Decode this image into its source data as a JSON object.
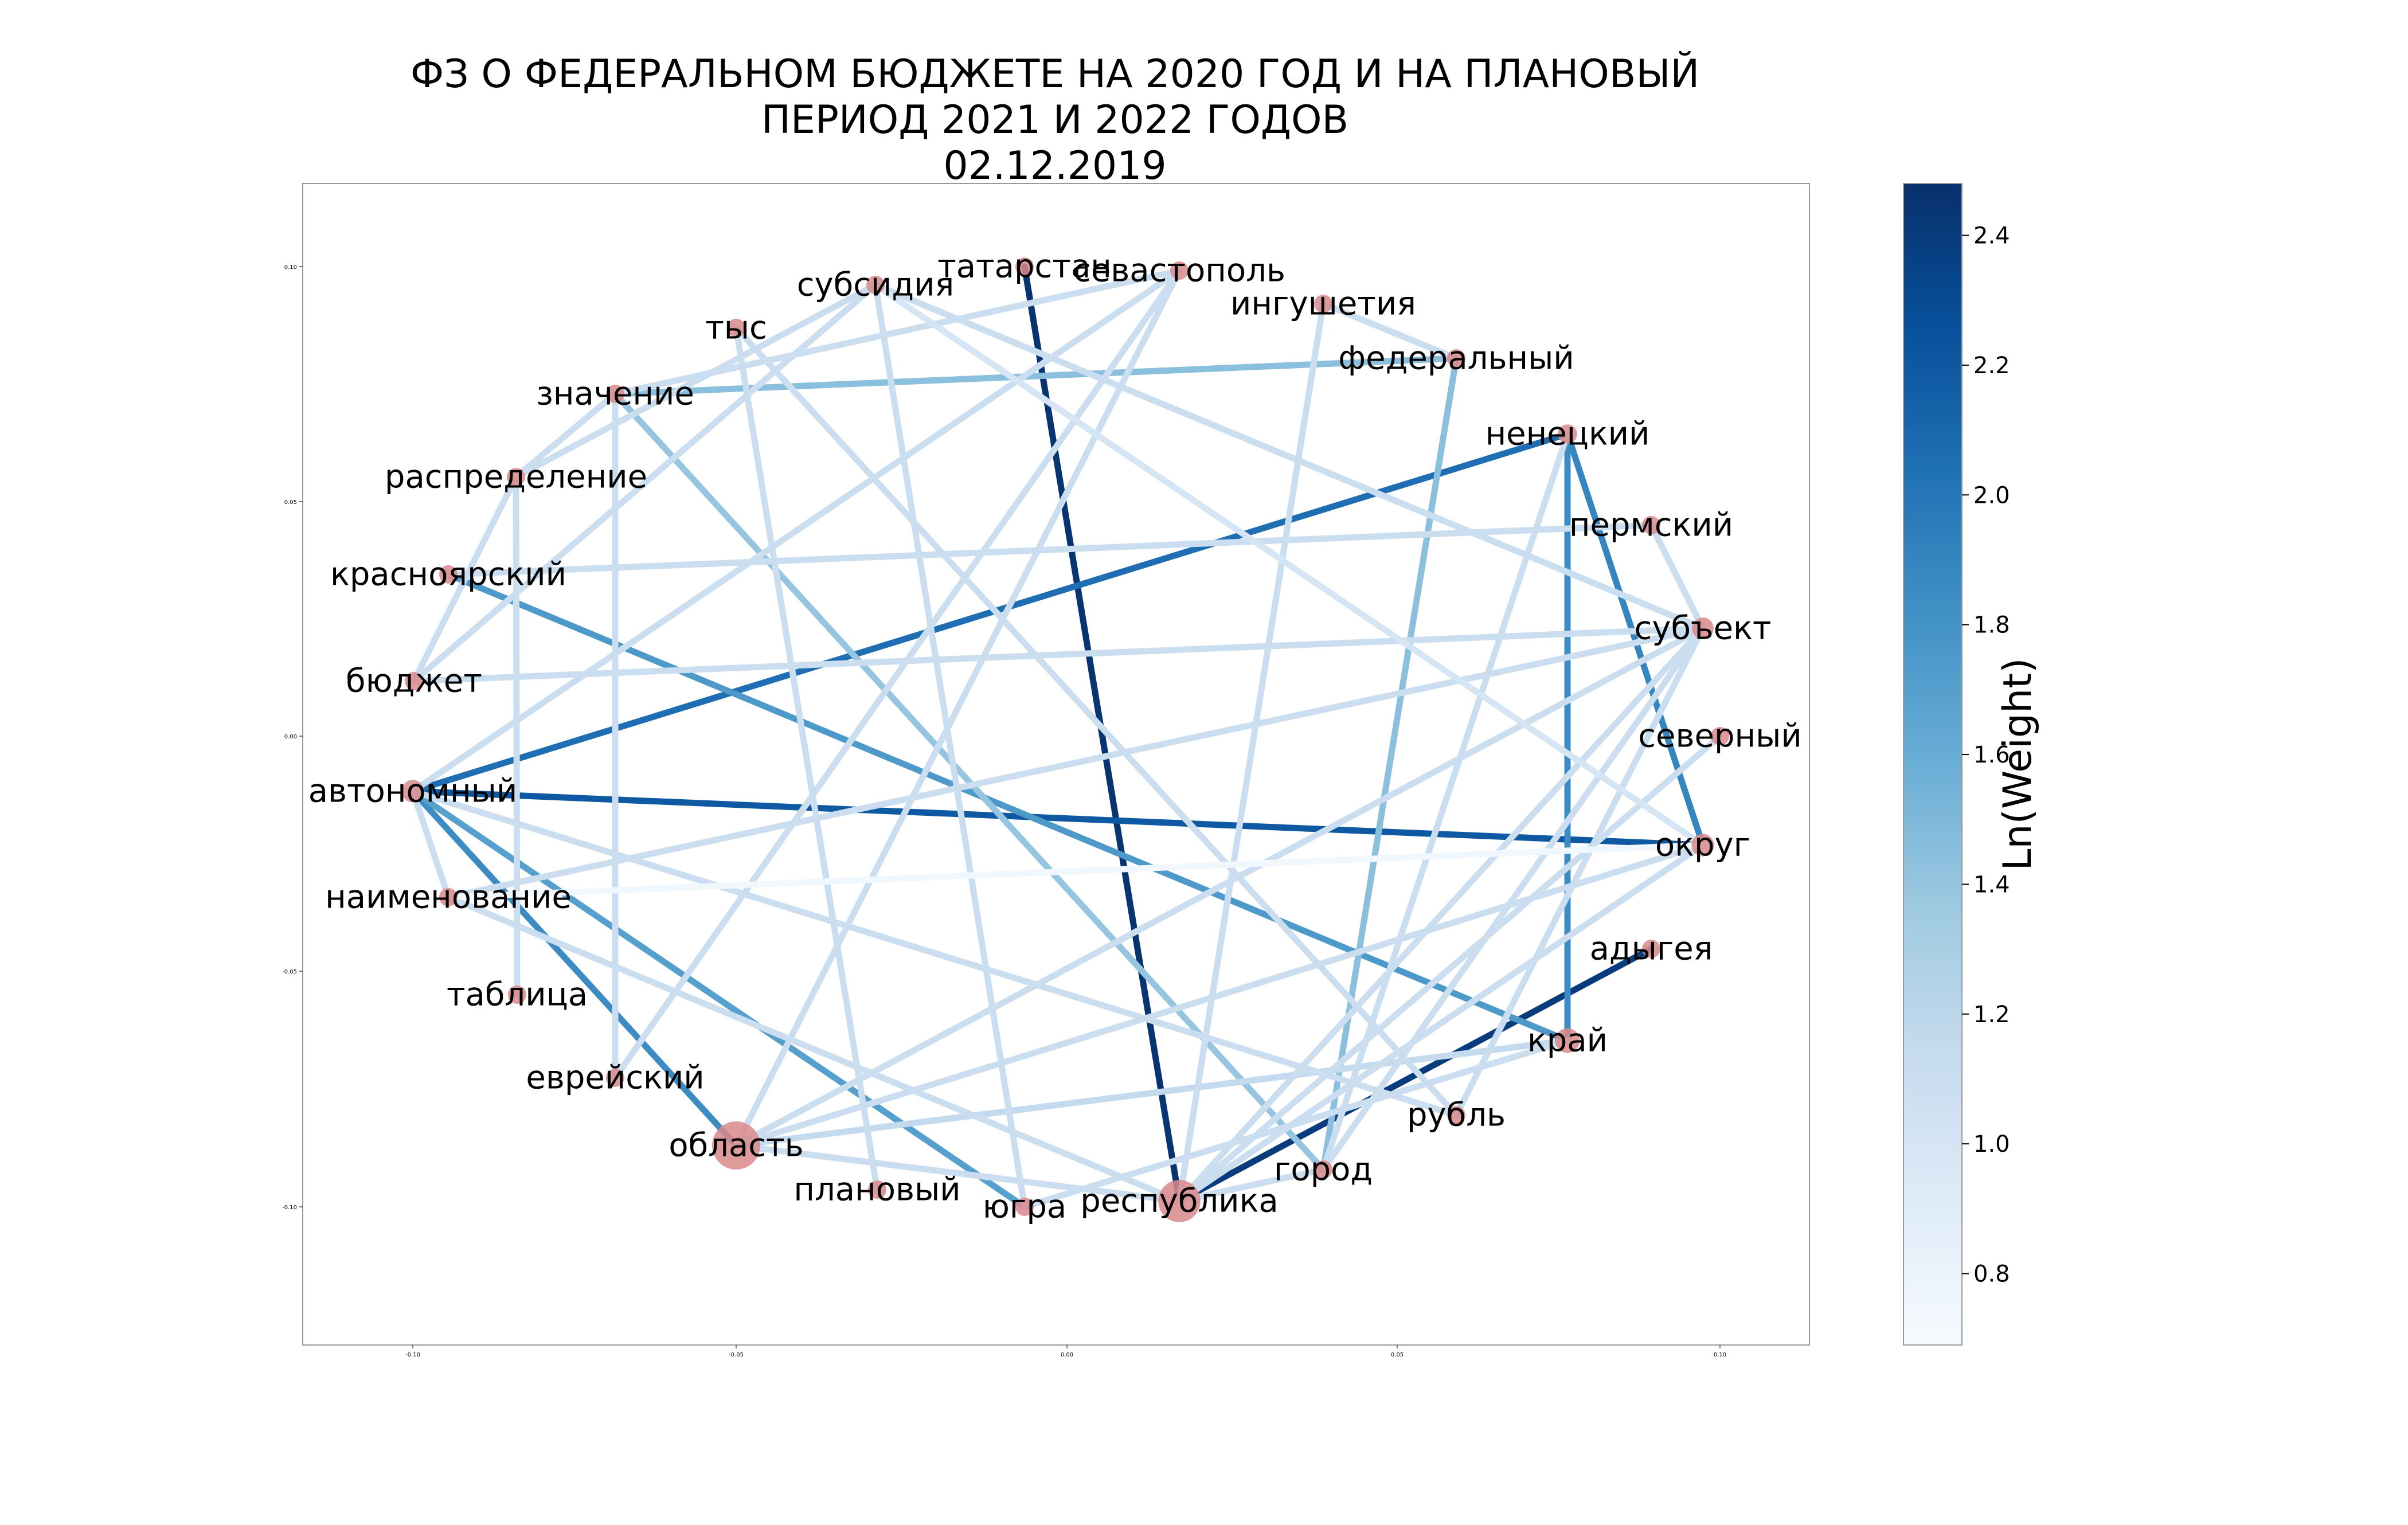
{
  "title": {
    "line1": "ФЗ О ФЕДЕРАЛЬНОМ БЮДЖЕТЕ НА 2020 ГОД И НА ПЛАНОВЫЙ",
    "line2": "ПЕРИОД 2021 И 2022 ГОДОВ",
    "line3": "02.12.2019"
  },
  "colorbar": {
    "label": "Ln(Weight)",
    "min": 0.69,
    "max": 2.48,
    "ticks": [
      "0.8",
      "1.0",
      "1.2",
      "1.4",
      "1.6",
      "1.8",
      "2.0",
      "2.2",
      "2.4"
    ]
  },
  "axes": {
    "x_ticks": [
      "-0.10",
      "-0.05",
      "0.00",
      "0.05",
      "0.10"
    ],
    "y_ticks": [
      "0.10",
      "0.05",
      "0.00",
      "-0.05",
      "-0.10"
    ]
  },
  "nodes": [
    {
      "id": "tatarstan",
      "label": "татарстан",
      "size": 1
    },
    {
      "id": "sevastopol",
      "label": "севастополь",
      "size": 1
    },
    {
      "id": "subsidiya",
      "label": "субсидия",
      "size": 1
    },
    {
      "id": "ingushetiya",
      "label": "ингушетия",
      "size": 1
    },
    {
      "id": "tys",
      "label": "тыс",
      "size": 1
    },
    {
      "id": "federalny",
      "label": "федеральный",
      "size": 1
    },
    {
      "id": "znachenie",
      "label": "значение",
      "size": 1
    },
    {
      "id": "nenetsky",
      "label": "ненецкий",
      "size": 1.1
    },
    {
      "id": "raspredelenie",
      "label": "распределение",
      "size": 1
    },
    {
      "id": "permsky",
      "label": "пермский",
      "size": 1
    },
    {
      "id": "krasnoyarsky",
      "label": "красноярский",
      "size": 1
    },
    {
      "id": "subekt",
      "label": "субъект",
      "size": 1.4
    },
    {
      "id": "byudzhet",
      "label": "бюджет",
      "size": 1
    },
    {
      "id": "severny",
      "label": "северный",
      "size": 1
    },
    {
      "id": "avtonomny",
      "label": "автономный",
      "size": 1.5
    },
    {
      "id": "okrug",
      "label": "округ",
      "size": 1.5
    },
    {
      "id": "naimenovanie",
      "label": "наименование",
      "size": 1
    },
    {
      "id": "adygeya",
      "label": "адыгея",
      "size": 1
    },
    {
      "id": "tablitsa",
      "label": "таблица",
      "size": 1
    },
    {
      "id": "kray",
      "label": "край",
      "size": 1.8
    },
    {
      "id": "evreysky",
      "label": "еврейский",
      "size": 1
    },
    {
      "id": "rubl",
      "label": "рубль",
      "size": 1
    },
    {
      "id": "oblast",
      "label": "область",
      "size": 4
    },
    {
      "id": "gorod",
      "label": "город",
      "size": 1
    },
    {
      "id": "planovy",
      "label": "плановый",
      "size": 1
    },
    {
      "id": "yugra",
      "label": "югра",
      "size": 1
    },
    {
      "id": "respublika",
      "label": "республика",
      "size": 2.8
    }
  ],
  "edges": [
    {
      "source": "tatarstan",
      "target": "respublika",
      "weight": 2.45
    },
    {
      "source": "adygeya",
      "target": "respublika",
      "weight": 2.4
    },
    {
      "source": "avtonomny",
      "target": "okrug",
      "weight": 2.2
    },
    {
      "source": "avtonomny",
      "target": "nenetsky",
      "weight": 2.05
    },
    {
      "source": "nenetsky",
      "target": "okrug",
      "weight": 1.9
    },
    {
      "source": "nenetsky",
      "target": "kray",
      "weight": 1.85
    },
    {
      "source": "avtonomny",
      "target": "oblast",
      "weight": 1.85
    },
    {
      "source": "krasnoyarsky",
      "target": "kray",
      "weight": 1.75
    },
    {
      "source": "avtonomny",
      "target": "yugra",
      "weight": 1.7
    },
    {
      "source": "federalny",
      "target": "gorod",
      "weight": 1.45
    },
    {
      "source": "znachenie",
      "target": "federalny",
      "weight": 1.45
    },
    {
      "source": "znachenie",
      "target": "gorod",
      "weight": 1.4
    },
    {
      "source": "oblast",
      "target": "kray",
      "weight": 1.15
    },
    {
      "source": "respublika",
      "target": "ingushetiya",
      "weight": 1.1
    },
    {
      "source": "respublika",
      "target": "subekt",
      "weight": 1.1
    },
    {
      "source": "respublika",
      "target": "severny",
      "weight": 1.1
    },
    {
      "source": "respublika",
      "target": "okrug",
      "weight": 1.1
    },
    {
      "source": "subsidiya",
      "target": "subekt",
      "weight": 1.1
    },
    {
      "source": "subsidiya",
      "target": "yugra",
      "weight": 1.1
    },
    {
      "source": "subsidiya",
      "target": "raspredelenie",
      "weight": 1.1
    },
    {
      "source": "subsidiya",
      "target": "byudzhet",
      "weight": 1.1
    },
    {
      "source": "sevastopol",
      "target": "znachenie",
      "weight": 1.1
    },
    {
      "source": "sevastopol",
      "target": "oblast",
      "weight": 1.1
    },
    {
      "source": "sevastopol",
      "target": "avtonomny",
      "weight": 1.1
    },
    {
      "source": "ingushetiya",
      "target": "federalny",
      "weight": 1.1
    },
    {
      "source": "tys",
      "target": "planovy",
      "weight": 1.1
    },
    {
      "source": "tys",
      "target": "rubl",
      "weight": 1.1
    },
    {
      "source": "znachenie",
      "target": "raspredelenie",
      "weight": 1.1
    },
    {
      "source": "raspredelenie",
      "target": "tablitsa",
      "weight": 1.1
    },
    {
      "source": "raspredelenie",
      "target": "byudzhet",
      "weight": 1.1
    },
    {
      "source": "krasnoyarsky",
      "target": "permsky",
      "weight": 1.1
    },
    {
      "source": "byudzhet",
      "target": "subekt",
      "weight": 1.1
    },
    {
      "source": "naimenovanie",
      "target": "subekt",
      "weight": 1.1
    },
    {
      "source": "avtonomny",
      "target": "naimenovanie",
      "weight": 1.1
    },
    {
      "source": "avtonomny",
      "target": "rubl",
      "weight": 1.1
    },
    {
      "source": "naimenovanie",
      "target": "respublika",
      "weight": 1.1
    },
    {
      "source": "evreysky",
      "target": "sevastopol",
      "weight": 1.1
    },
    {
      "source": "evreysky",
      "target": "znachenie",
      "weight": 1.1
    },
    {
      "source": "oblast",
      "target": "okrug",
      "weight": 1.1
    },
    {
      "source": "oblast",
      "target": "respublika",
      "weight": 1.1
    },
    {
      "source": "gorod",
      "target": "nenetsky",
      "weight": 1.1
    },
    {
      "source": "gorod",
      "target": "subekt",
      "weight": 1.1
    },
    {
      "source": "yugra",
      "target": "kray",
      "weight": 1.1
    },
    {
      "source": "respublika",
      "target": "gorod",
      "weight": 1.1
    },
    {
      "source": "oblast",
      "target": "subekt",
      "weight": 1.1
    },
    {
      "source": "permsky",
      "target": "subekt",
      "weight": 1.1
    },
    {
      "source": "subsidiya",
      "target": "subekt",
      "weight": 1.1
    },
    {
      "source": "rubl",
      "target": "subekt",
      "weight": 1.1
    },
    {
      "source": "subsidiya",
      "target": "okrug",
      "weight": 1.0
    },
    {
      "source": "naimenovanie",
      "target": "okrug",
      "weight": 0.75
    }
  ]
}
